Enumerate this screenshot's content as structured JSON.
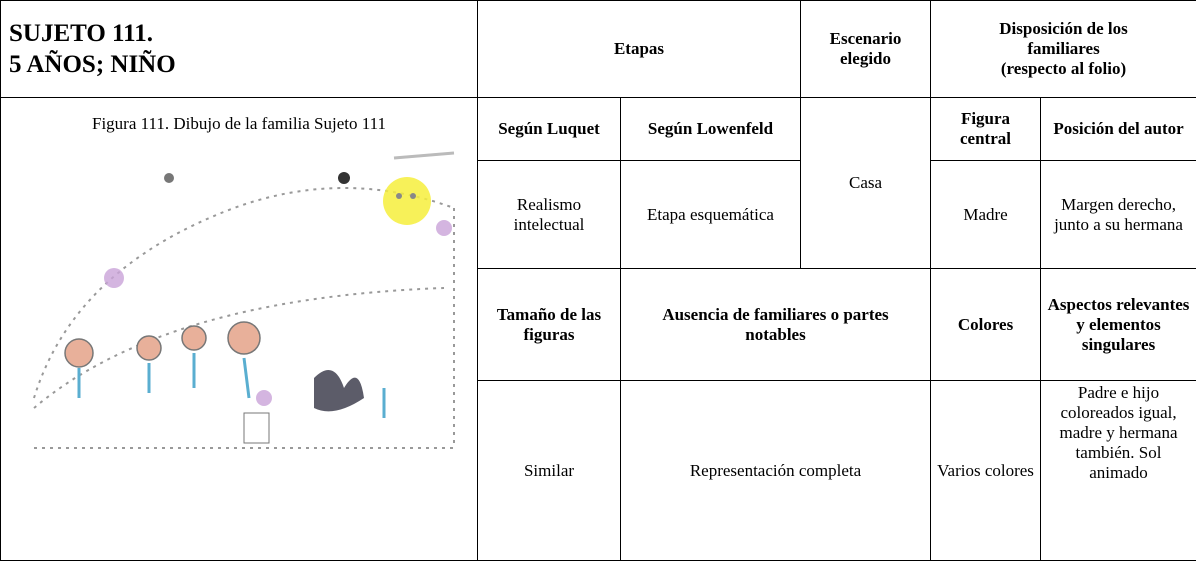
{
  "header": {
    "subject": [
      "SUJETO 111.",
      "5 AÑOS; NIÑO"
    ],
    "etapas": "Etapas",
    "escenario": [
      "Escenario",
      "elegido"
    ],
    "disposicion": [
      "Disposición de los",
      "familiares",
      "(respecto al folio)"
    ]
  },
  "figure": {
    "caption": "Figura 111. Dibujo de la familia Sujeto 111"
  },
  "table": {
    "rows": [
      [
        "Según Luquet",
        "Según Lowenfeld",
        "Figura central",
        "Posición del autor"
      ],
      [
        "Realismo intelectual",
        "Etapa esquemática",
        "Casa",
        "Madre",
        "Margen derecho, junto a su hermana"
      ],
      [
        "Tamaño de las figuras",
        "Ausencia de familiares o partes notables",
        "Colores",
        "Aspectos relevantes y elementos singulares"
      ],
      [
        "Similar",
        "Representación completa",
        "Varios colores",
        "Padre e hijo coloreados igual, madre y hermana también. Sol animado"
      ]
    ]
  }
}
